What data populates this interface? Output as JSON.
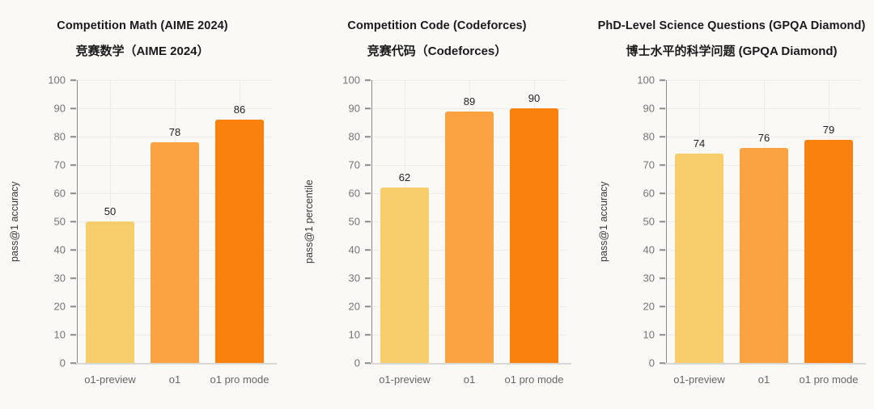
{
  "page": {
    "background": "#FAF9F6",
    "bar_palette": {
      "o1_preview": "#F8CE6D",
      "o1": "#FBA342",
      "o1_pro_mode": "#FB810E"
    }
  },
  "chart_data": [
    {
      "type": "bar",
      "title": "Competition Math (AIME 2024)",
      "subtitle": "竞赛数学（AIME 2024）",
      "ylabel": "pass@1 accuracy",
      "xlabel": "",
      "categories": [
        "o1-preview",
        "o1",
        "o1 pro mode"
      ],
      "values": [
        50,
        78,
        86
      ],
      "ylim": [
        0,
        100
      ],
      "ytick_step": 10,
      "grid": true,
      "legend": "none",
      "bar_colors": [
        "#F8CE6D",
        "#FBA342",
        "#FB810E"
      ]
    },
    {
      "type": "bar",
      "title": "Competition Code (Codeforces)",
      "subtitle": "竞赛代码（Codeforces）",
      "ylabel": "pass@1 percentile",
      "xlabel": "",
      "categories": [
        "o1-preview",
        "o1",
        "o1 pro mode"
      ],
      "values": [
        62,
        89,
        90
      ],
      "ylim": [
        0,
        100
      ],
      "ytick_step": 10,
      "grid": true,
      "legend": "none",
      "bar_colors": [
        "#F8CE6D",
        "#FBA342",
        "#FB810E"
      ]
    },
    {
      "type": "bar",
      "title": "PhD-Level Science Questions (GPQA Diamond)",
      "subtitle": "博士水平的科学问题 (GPQA Diamond)",
      "ylabel": "pass@1 accuracy",
      "xlabel": "",
      "categories": [
        "o1-preview",
        "o1",
        "o1 pro mode"
      ],
      "values": [
        74,
        76,
        79
      ],
      "ylim": [
        0,
        100
      ],
      "ytick_step": 10,
      "grid": true,
      "legend": "none",
      "bar_colors": [
        "#F8CE6D",
        "#FBA342",
        "#FB810E"
      ]
    }
  ]
}
